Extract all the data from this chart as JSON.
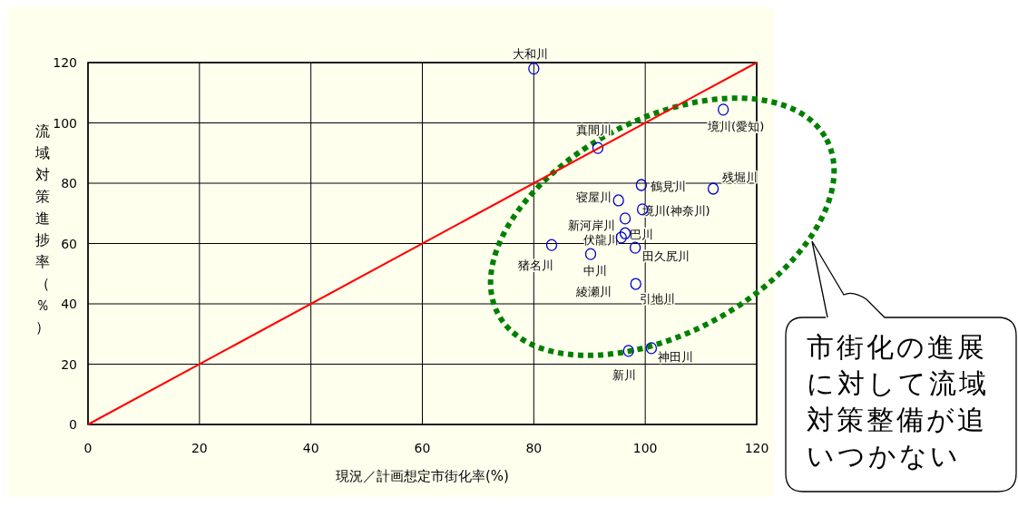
{
  "chart_data": {
    "type": "scatter",
    "xlabel": "現況／計画想定市街化率(%)",
    "ylabel": "流域対策進捗率（％）",
    "xlim": [
      0,
      120
    ],
    "ylim": [
      0,
      120
    ],
    "xticks": [
      0,
      20,
      40,
      60,
      80,
      100,
      120
    ],
    "yticks": [
      0,
      20,
      40,
      60,
      80,
      100,
      120
    ],
    "grid": true,
    "series": [
      {
        "marker": "circle",
        "color": "#0000cc",
        "x": [
          80,
          91.5,
          114,
          112.2,
          99.3,
          95.2,
          99.5,
          96.4,
          96.4,
          95.7,
          83.2,
          90.2,
          98.2,
          98.3,
          101.1,
          97
        ],
        "values": [
          118,
          91.7,
          104.4,
          78.2,
          79.4,
          74.3,
          71.3,
          68.3,
          63.4,
          62,
          59.5,
          56.5,
          58.6,
          46.6,
          25.3,
          24.4
        ]
      },
      {
        "type": "line",
        "color": "#ff0000",
        "x": [
          0,
          120
        ],
        "values": [
          0,
          120
        ]
      }
    ],
    "annotations": [
      {
        "text": "大和川",
        "x": 80,
        "y": 118
      },
      {
        "text": "真間川",
        "x": 91.5,
        "y": 91.7
      },
      {
        "text": "境川(愛知)",
        "x": 114,
        "y": 104.4
      },
      {
        "text": "残堀川",
        "x": 112.2,
        "y": 78.2
      },
      {
        "text": "鶴見川",
        "x": 99.3,
        "y": 79.4
      },
      {
        "text": "寝屋川",
        "x": 95.2,
        "y": 74.3
      },
      {
        "text": "境川(神奈川)",
        "x": 99.5,
        "y": 71.3
      },
      {
        "text": "新河岸川",
        "x": 96.4,
        "y": 68.3
      },
      {
        "text": "巴川",
        "x": 96.4,
        "y": 63.4
      },
      {
        "text": "伏龍川",
        "x": 95.7,
        "y": 62
      },
      {
        "text": "猪名川",
        "x": 83.2,
        "y": 59.5
      },
      {
        "text": "中川",
        "x": 90.2,
        "y": 56.5
      },
      {
        "text": "田久尻川",
        "x": 98.2,
        "y": 58.6
      },
      {
        "text": "引地川",
        "x": 98.3,
        "y": 46.6
      },
      {
        "text": "綾瀬川",
        "x": 98.3,
        "y": 46.6
      },
      {
        "text": "神田川",
        "x": 101.1,
        "y": 25.3
      },
      {
        "text": "新川",
        "x": 97,
        "y": 24.4
      },
      "市街化の進展に対して流域対策整備が追いつかない"
    ]
  }
}
